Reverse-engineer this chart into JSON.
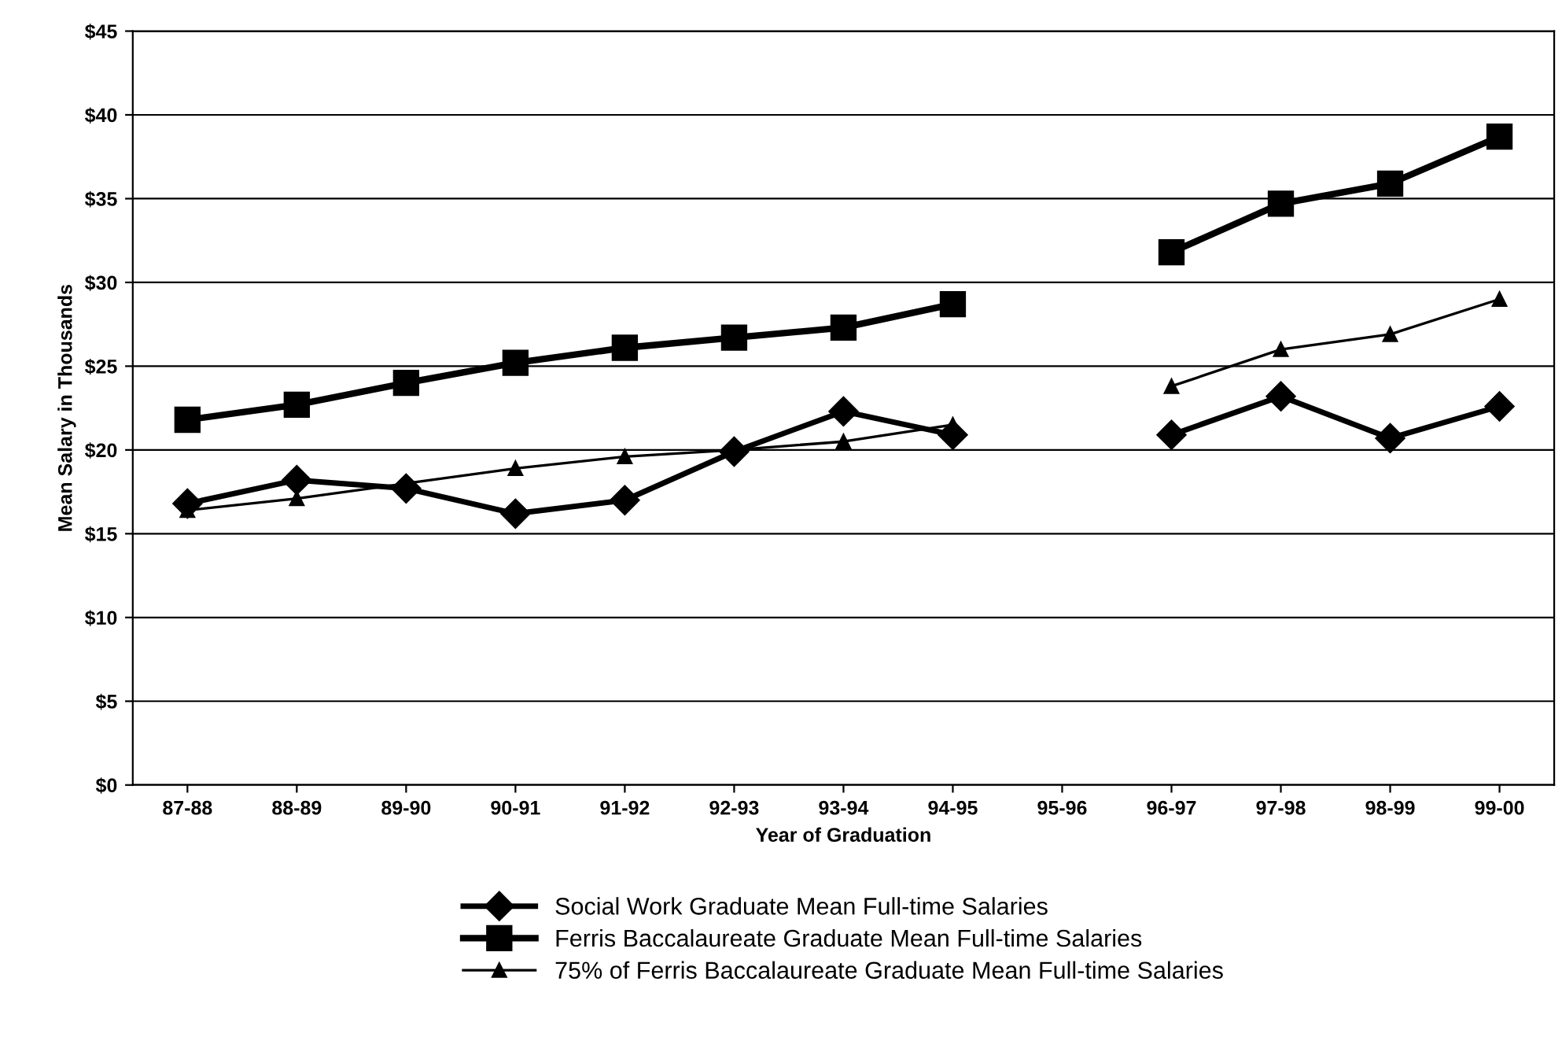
{
  "chart_data": {
    "type": "line",
    "xlabel": "Year of Graduation",
    "ylabel": "Mean Salary in Thousands",
    "categories": [
      "87-88",
      "88-89",
      "89-90",
      "90-91",
      "91-92",
      "92-93",
      "93-94",
      "94-95",
      "95-96",
      "96-97",
      "97-98",
      "98-99",
      "99-00"
    ],
    "series": [
      {
        "name": "Social Work Graduate Mean Full-time Salaries",
        "color": "#000000",
        "marker": "diamond",
        "values": [
          16.8,
          18.2,
          17.7,
          16.2,
          17.0,
          19.9,
          22.3,
          20.9,
          null,
          20.9,
          23.2,
          20.7,
          22.6
        ]
      },
      {
        "name": "Ferris Baccalaureate Graduate Mean Full-time Salaries",
        "color": "#000000",
        "marker": "square",
        "values": [
          21.8,
          22.7,
          24.0,
          25.2,
          26.1,
          26.7,
          27.3,
          28.7,
          null,
          31.8,
          34.7,
          35.9,
          38.7
        ]
      },
      {
        "name": "75% of Ferris Baccalaureate Graduate Mean Full-time Salaries",
        "color": "#000000",
        "marker": "triangle",
        "values": [
          16.4,
          17.1,
          18.0,
          18.9,
          19.6,
          20.0,
          20.5,
          21.5,
          null,
          23.8,
          26.0,
          26.9,
          29.0
        ]
      }
    ],
    "ylim": [
      0,
      45
    ],
    "yticks": [
      {
        "value": 0,
        "label": "$0"
      },
      {
        "value": 5,
        "label": "$5"
      },
      {
        "value": 10,
        "label": "$10"
      },
      {
        "value": 15,
        "label": "$15"
      },
      {
        "value": 20,
        "label": "$20"
      },
      {
        "value": 25,
        "label": "$25"
      },
      {
        "value": 30,
        "label": "$30"
      },
      {
        "value": 35,
        "label": "$35"
      },
      {
        "value": 40,
        "label": "$40"
      },
      {
        "value": 45,
        "label": "$45"
      }
    ],
    "grid": "y",
    "legend": "bottom"
  }
}
